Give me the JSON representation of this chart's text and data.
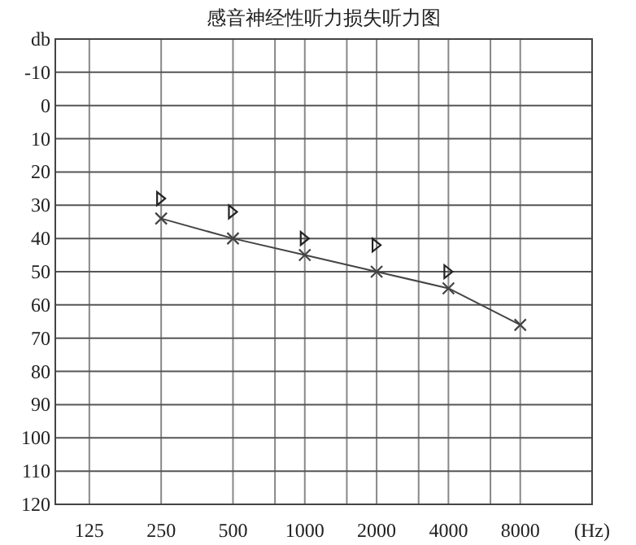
{
  "chart_data": {
    "type": "line",
    "title": "感音神经性听力损失听力图",
    "log": "x",
    "grid": true,
    "xlim": [
      90,
      16000
    ],
    "xticks": [
      125,
      250,
      500,
      {
        "value": 750,
        "label": null
      },
      1000,
      {
        "value": 1500,
        "label": null
      },
      2000,
      {
        "value": 3000,
        "label": null
      },
      4000,
      {
        "value": 6000,
        "label": null
      },
      8000,
      {
        "value": 16000,
        "label": "(Hz)"
      }
    ],
    "ylim": [
      120,
      -20
    ],
    "yticks": [
      {
        "value": -20,
        "label": "db"
      },
      -10,
      0,
      10,
      20,
      30,
      40,
      50,
      60,
      70,
      80,
      90,
      100,
      110,
      120
    ],
    "series": [
      {
        "marker": "cross",
        "color": "#444444",
        "x": [
          250,
          500,
          1000,
          2000,
          4000,
          8000
        ],
        "values": [
          34,
          40,
          45,
          50,
          55,
          66
        ]
      },
      {
        "type": "scatter",
        "marker": "triangle",
        "color": "#222222",
        "x": [
          250,
          500,
          1000,
          2000,
          4000
        ],
        "values": [
          28,
          32,
          40,
          42,
          50
        ]
      }
    ]
  }
}
